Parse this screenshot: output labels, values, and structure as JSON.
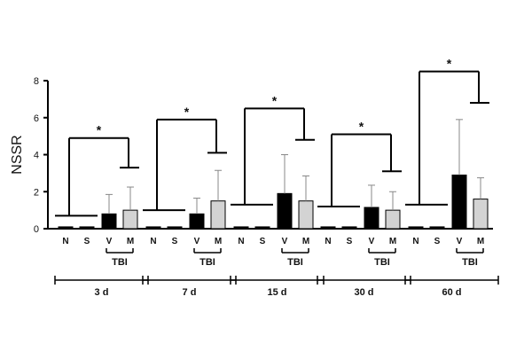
{
  "chart_data": {
    "type": "bar",
    "ylabel": "NSSR",
    "ylim": [
      0,
      8
    ],
    "yticks": [
      "0",
      "2",
      "4",
      "6",
      "8"
    ],
    "categories": [
      "N",
      "S",
      "V",
      "M"
    ],
    "tbi_label": "TBI",
    "significance_label": "*",
    "bar_colors": {
      "N": "#000000",
      "S": "#000000",
      "V": "#000000",
      "M": "#d3d3d3"
    },
    "groups": [
      {
        "label": "3 d",
        "values": [
          0.1,
          0.1,
          0.8,
          1.0
        ],
        "errors": [
          0,
          0,
          1.05,
          1.25
        ],
        "sig_bracket": {
          "left": 0.7,
          "right": 3.3,
          "top": 4.9
        }
      },
      {
        "label": "7 d",
        "values": [
          0.1,
          0.1,
          0.8,
          1.5
        ],
        "errors": [
          0,
          0,
          0.85,
          1.65
        ],
        "sig_bracket": {
          "left": 1.0,
          "right": 4.1,
          "top": 5.9
        }
      },
      {
        "label": "15 d",
        "values": [
          0.1,
          0.1,
          1.9,
          1.5
        ],
        "errors": [
          0,
          0,
          2.1,
          1.35
        ],
        "sig_bracket": {
          "left": 1.3,
          "right": 4.8,
          "top": 6.5
        }
      },
      {
        "label": "30 d",
        "values": [
          0.1,
          0.1,
          1.15,
          1.0
        ],
        "errors": [
          0,
          0,
          1.2,
          1.0
        ],
        "sig_bracket": {
          "left": 1.2,
          "right": 3.1,
          "top": 5.1
        }
      },
      {
        "label": "60 d",
        "values": [
          0.1,
          0.1,
          2.9,
          1.6
        ],
        "errors": [
          0,
          0,
          3.0,
          1.15
        ],
        "sig_bracket": {
          "left": 1.3,
          "right": 6.8,
          "top": 8.5
        }
      }
    ]
  }
}
